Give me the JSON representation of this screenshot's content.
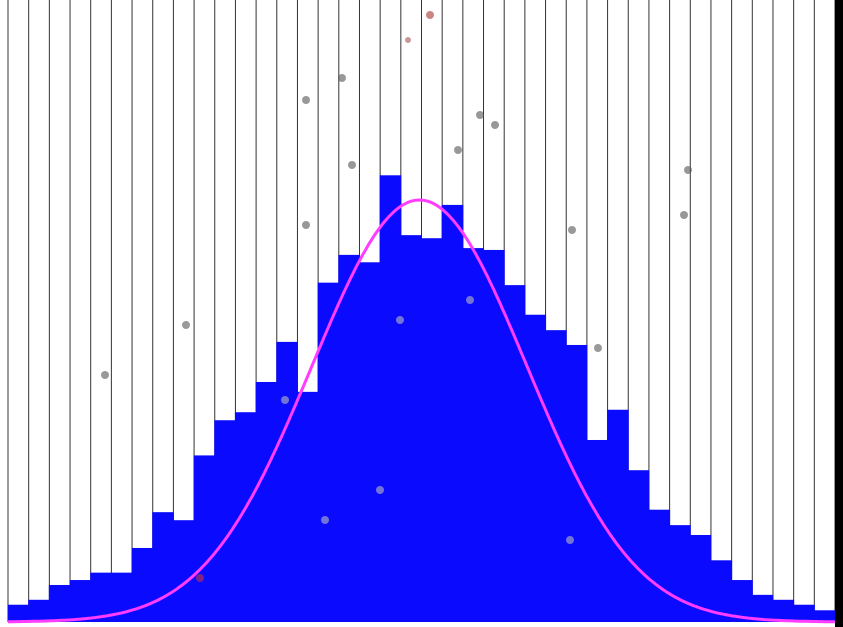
{
  "chart_data": {
    "type": "bar",
    "categories": [
      null,
      null,
      null,
      null,
      null,
      null,
      null,
      null,
      null,
      null,
      null,
      null,
      null,
      null,
      null,
      null,
      null,
      null,
      null,
      null,
      null,
      null,
      null,
      null,
      null,
      null,
      null,
      null,
      null,
      null,
      null,
      null,
      null,
      null,
      null,
      null,
      null,
      null,
      null,
      null
    ],
    "values": [
      2.8,
      3.6,
      6,
      6.8,
      8,
      8,
      12,
      17.8,
      16.5,
      27,
      32.7,
      34,
      38.9,
      45.4,
      37.3,
      55,
      59.5,
      58.3,
      72.4,
      62.7,
      62.2,
      67.6,
      60.6,
      60.3,
      54.6,
      49.8,
      47.3,
      44.9,
      29.5,
      34.4,
      24.6,
      18.2,
      15.7,
      14.1,
      10,
      6.8,
      4.4,
      3.6,
      2.8,
      1.9
    ],
    "color": "#0a0aff",
    "ylim": [
      0,
      100
    ],
    "curve": {
      "color": "#ff3cff",
      "mean": 19.9,
      "sd": 5.2,
      "peak": 68.4
    }
  }
}
